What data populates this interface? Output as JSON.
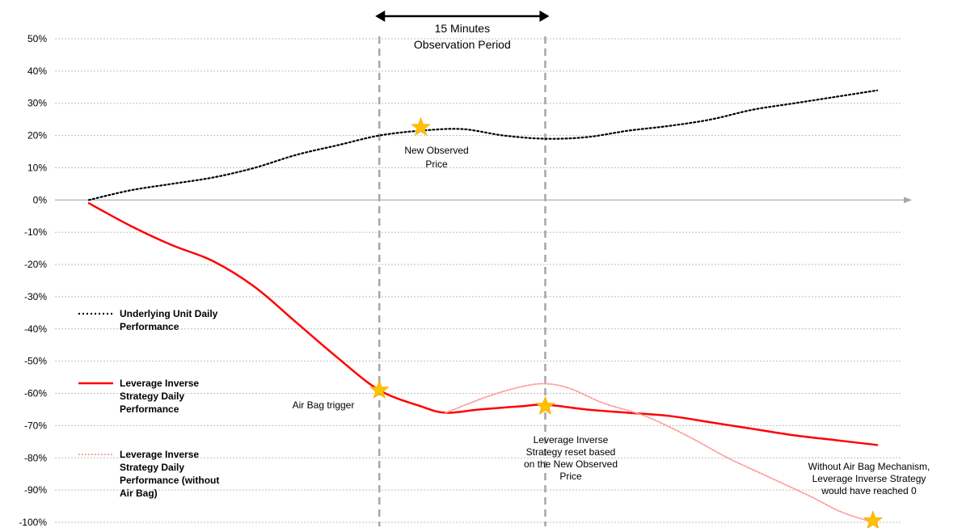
{
  "chart_data": {
    "type": "line",
    "ylim": [
      -100,
      50
    ],
    "y_ticks": [
      "50%",
      "40%",
      "30%",
      "20%",
      "10%",
      "0%",
      "-10%",
      "-20%",
      "-30%",
      "-40%",
      "-50%",
      "-60%",
      "-70%",
      "-80%",
      "-90%",
      "-100%"
    ],
    "grid": true,
    "legend_placement": "left",
    "colors": {
      "underlying": "#000000",
      "leverage": "#ff0000",
      "without_airbag": "#ff9999",
      "star": "#ffc000",
      "divider": "#a6a6a6",
      "grid": "#bfbfbf"
    },
    "series": [
      {
        "name": "Underlying Unit Daily Performance",
        "style": "dotted",
        "points": [
          [
            0,
            0
          ],
          [
            5,
            3
          ],
          [
            10,
            5
          ],
          [
            15,
            7
          ],
          [
            20,
            10
          ],
          [
            25,
            14
          ],
          [
            30,
            17
          ],
          [
            35,
            20
          ],
          [
            40,
            21.5
          ],
          [
            45,
            22
          ],
          [
            50,
            20
          ],
          [
            55,
            19
          ],
          [
            60,
            19.5
          ],
          [
            65,
            21.5
          ],
          [
            70,
            23
          ],
          [
            75,
            25
          ],
          [
            80,
            28
          ],
          [
            85,
            30
          ],
          [
            90,
            32
          ],
          [
            95,
            34
          ]
        ]
      },
      {
        "name": "Leverage Inverse Strategy Daily Performance",
        "style": "solid",
        "points": [
          [
            0,
            -1
          ],
          [
            5,
            -8
          ],
          [
            10,
            -14
          ],
          [
            15,
            -19
          ],
          [
            20,
            -27
          ],
          [
            25,
            -38
          ],
          [
            30,
            -49
          ],
          [
            35,
            -59
          ],
          [
            40,
            -64
          ],
          [
            43,
            -66
          ],
          [
            47,
            -65
          ],
          [
            52,
            -64
          ],
          [
            55,
            -63.5
          ],
          [
            60,
            -65
          ],
          [
            65,
            -66
          ],
          [
            70,
            -67
          ],
          [
            75,
            -69
          ],
          [
            80,
            -71
          ],
          [
            85,
            -73
          ],
          [
            90,
            -74.5
          ],
          [
            95,
            -76
          ]
        ]
      },
      {
        "name": "Leverage Inverse Strategy Daily Performance (without Air Bag)",
        "style": "dotted",
        "points": [
          [
            43,
            -66
          ],
          [
            48,
            -61
          ],
          [
            52,
            -58
          ],
          [
            55,
            -57
          ],
          [
            58,
            -58.5
          ],
          [
            62,
            -63
          ],
          [
            67,
            -67
          ],
          [
            72,
            -73
          ],
          [
            77,
            -80
          ],
          [
            82,
            -86
          ],
          [
            87,
            -92
          ],
          [
            90,
            -96
          ],
          [
            92,
            -98
          ],
          [
            94.5,
            -100
          ]
        ]
      }
    ],
    "observation_lines": [
      35,
      55
    ],
    "stars": [
      {
        "x": 40,
        "y": 22.5
      },
      {
        "x": 35,
        "y": -59
      },
      {
        "x": 55,
        "y": -64
      },
      {
        "x": 94.5,
        "y": -99.5
      }
    ],
    "annotations": {
      "period": [
        "15 Minutes",
        "Observation Period"
      ],
      "new_observed": [
        "New Observed",
        "Price"
      ],
      "airbag_trigger": [
        "Air Bag trigger"
      ],
      "reset": [
        "Leverage Inverse",
        "Strategy reset based",
        "on the New Observed",
        "Price"
      ],
      "without_airbag": [
        "Without Air Bag Mechanism,",
        "Leverage Inverse Strategy",
        "would have reached 0"
      ]
    },
    "legend": [
      {
        "label_lines": [
          "Underlying Unit Daily",
          "Performance"
        ],
        "series": 0
      },
      {
        "label_lines": [
          "Leverage Inverse",
          "Strategy Daily",
          "Performance"
        ],
        "series": 1
      },
      {
        "label_lines": [
          "Leverage Inverse",
          "Strategy Daily",
          "Performance (without",
          "Air Bag)"
        ],
        "series": 2
      }
    ]
  }
}
